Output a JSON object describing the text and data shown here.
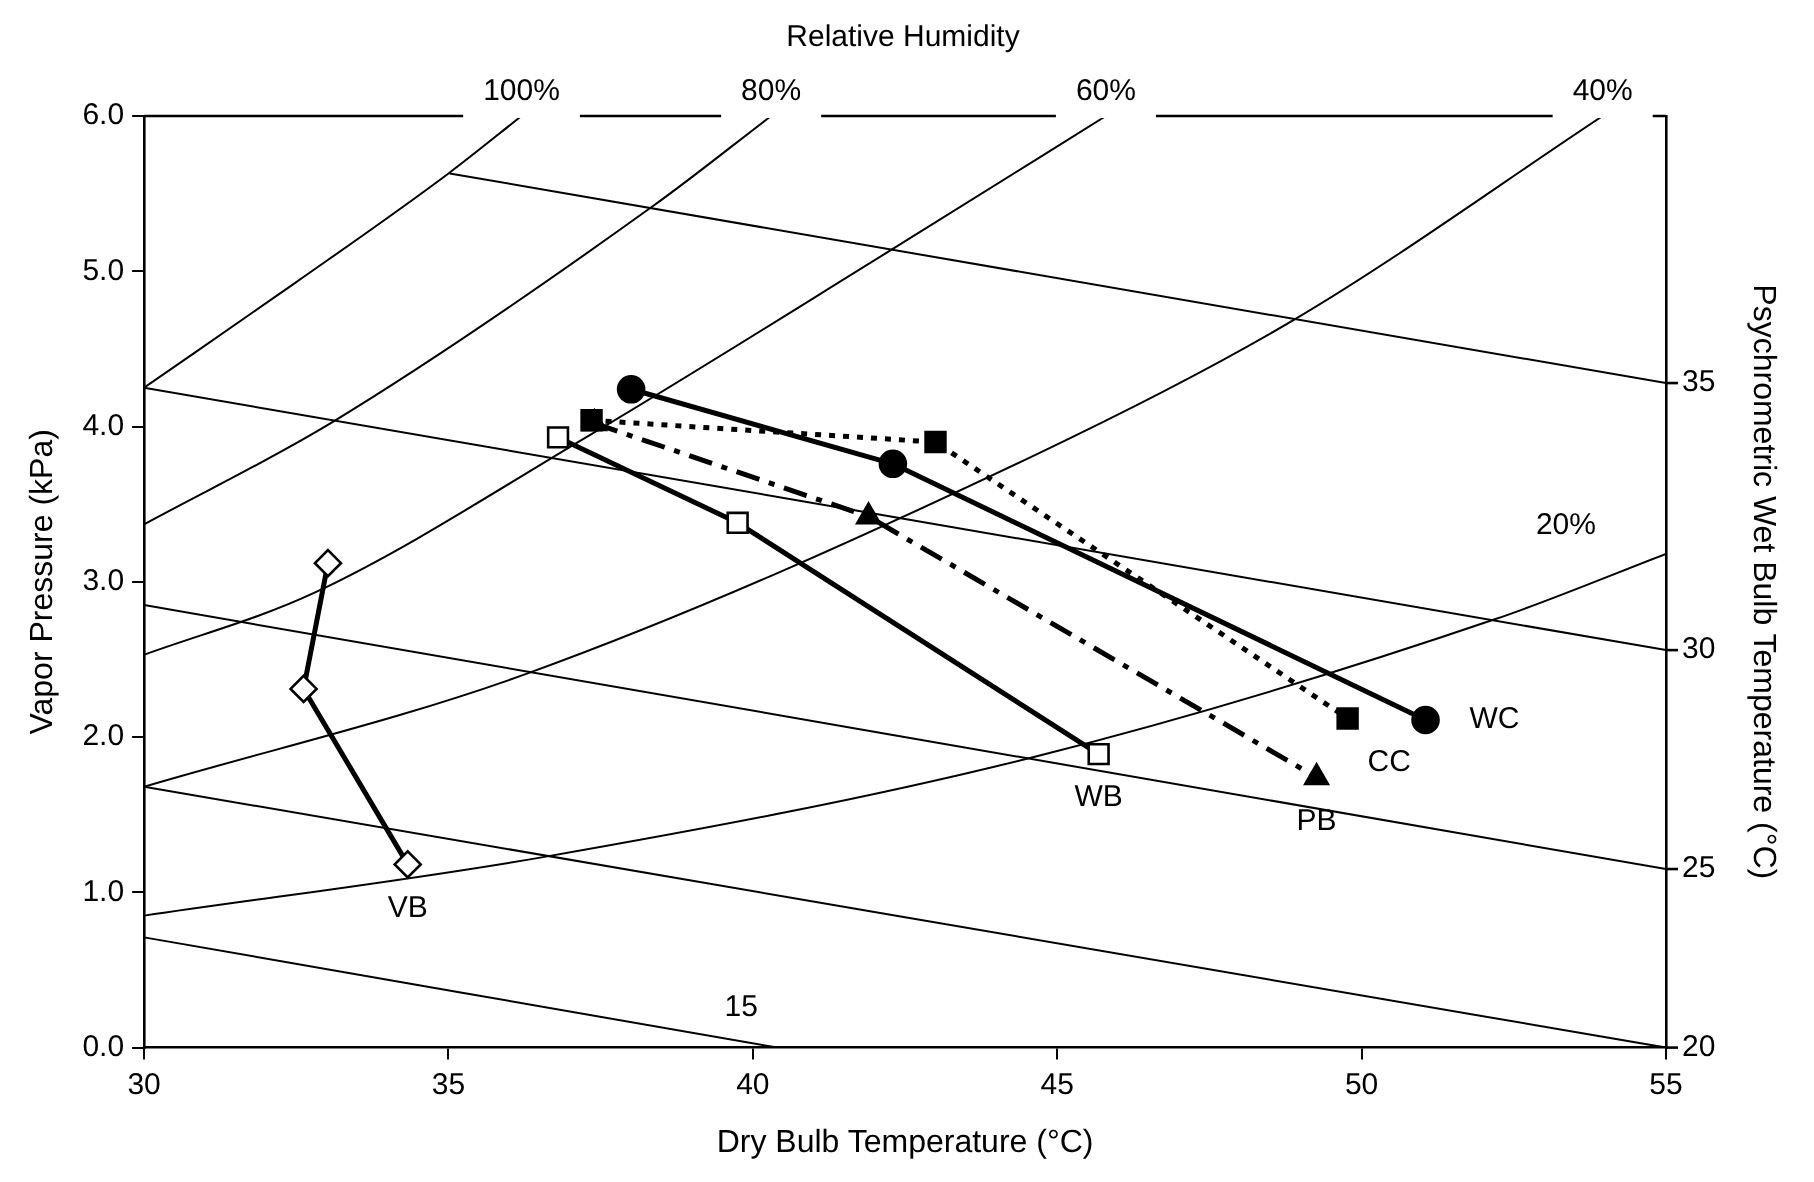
{
  "chart_data": {
    "type": "line",
    "title": "Relative Humidity",
    "xlabel": "Dry Bulb Temperature (°C)",
    "ylabel": "Vapor Pressure (kPa)",
    "y2label": "Psychrometric Wet Bulb Temperature (°C)",
    "xlim": [
      30,
      55
    ],
    "xticks": [
      30,
      35,
      40,
      45,
      50,
      55
    ],
    "ylim": [
      0,
      6
    ],
    "yticks": [
      {
        "value": 0,
        "label": "0.0"
      },
      {
        "value": 1,
        "label": "1.0"
      },
      {
        "value": 2,
        "label": "2.0"
      },
      {
        "value": 3,
        "label": "3.0"
      },
      {
        "value": 4,
        "label": "4.0"
      },
      {
        "value": 5,
        "label": "5.0"
      },
      {
        "value": 6,
        "label": "6.0"
      }
    ],
    "grid": false,
    "legend": "right",
    "series": [
      {
        "name": "100%",
        "color": "#000000",
        "marker": "none",
        "x": [
          30,
          32.5,
          35,
          36.2
        ],
        "values": [
          4.25,
          4.93,
          5.63,
          6.0
        ]
      },
      {
        "name": "80%",
        "color": "#000000",
        "marker": "none",
        "x": [
          30,
          33.1,
          38.36,
          40.3
        ],
        "values": [
          3.37,
          4.03,
          5.42,
          6.0
        ]
      },
      {
        "name": "60%",
        "color": "#000000",
        "marker": "none",
        "x": [
          30,
          32.8,
          37.3,
          42.2,
          45.8
        ],
        "values": [
          2.53,
          2.93,
          3.94,
          5.12,
          6.0
        ]
      },
      {
        "name": "40%",
        "color": "#000000",
        "marker": "none",
        "x": [
          30,
          36.3,
          44.6,
          48.9,
          53.96
        ],
        "values": [
          1.68,
          2.41,
          3.81,
          4.69,
          6.0
        ]
      },
      {
        "name": "20%",
        "color": "#000000",
        "marker": "none",
        "x": [
          30,
          36.6,
          44.6,
          52.2,
          55
        ],
        "values": [
          0.85,
          1.23,
          1.87,
          2.76,
          3.18
        ]
      },
      {
        "name": "35",
        "color": "#000000",
        "marker": "none",
        "x": [
          35.02,
          55
        ],
        "values": [
          5.63,
          4.28
        ]
      },
      {
        "name": "30",
        "color": "#000000",
        "marker": "none",
        "x": [
          30,
          55
        ],
        "values": [
          4.25,
          2.56
        ]
      },
      {
        "name": "25",
        "color": "#000000",
        "marker": "none",
        "x": [
          30,
          55
        ],
        "values": [
          2.85,
          1.15
        ]
      },
      {
        "name": "20",
        "color": "#000000",
        "marker": "none",
        "x": [
          30,
          55
        ],
        "values": [
          1.68,
          0
        ]
      },
      {
        "name": "15",
        "color": "#000000",
        "marker": "none",
        "x": [
          30,
          40.4
        ],
        "values": [
          0.71,
          0
        ]
      },
      {
        "name": "VB",
        "color": "#000000",
        "colors": [
          "#ffffff",
          "#ffffff",
          "#ffffff"
        ],
        "marker": "diamond",
        "line_style": "solid",
        "x": [
          33.02,
          32.62,
          34.33
        ],
        "values": [
          3.12,
          2.31,
          1.18
        ]
      },
      {
        "name": "WB",
        "color": "#000000",
        "colors": [
          "#ffffff",
          "#ffffff",
          "#ffffff"
        ],
        "marker": "square",
        "line_style": "solid",
        "x": [
          36.8,
          39.75,
          45.68
        ],
        "values": [
          3.93,
          3.38,
          1.89
        ]
      },
      {
        "name": "PB",
        "color": "#000000",
        "marker": "triangle",
        "line_style": "dashed",
        "x": [
          37.4,
          41.9,
          49.26
        ],
        "values": [
          4.02,
          3.42,
          1.74
        ]
      },
      {
        "name": "CC",
        "color": "#000000",
        "marker": "square",
        "line_style": "dotted",
        "x": [
          37.35,
          43.0,
          49.77
        ],
        "values": [
          4.04,
          3.9,
          2.12
        ]
      },
      {
        "name": "WC",
        "color": "#000000",
        "marker": "circle",
        "line_style": "solid",
        "x": [
          38.0,
          42.3,
          51.05
        ],
        "values": [
          4.24,
          3.76,
          2.11
        ]
      }
    ]
  }
}
